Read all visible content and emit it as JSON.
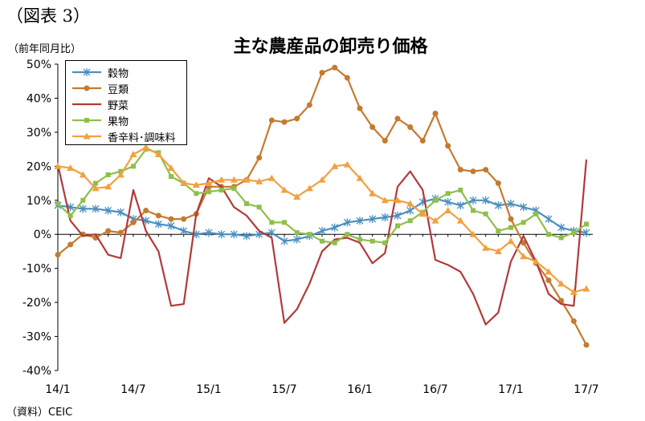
{
  "page": {
    "figure_label": "（図表 3）",
    "unit_label": "（前年同月比）",
    "title": "主な農産品の卸売り価格",
    "source": "（資料）CEIC"
  },
  "chart_data": {
    "type": "line",
    "title": "主な農産品の卸売り価格",
    "ylabel": "（前年同月比）",
    "xlabel": "",
    "ylim": [
      -40,
      50
    ],
    "yticks": [
      "50%",
      "40%",
      "30%",
      "20%",
      "10%",
      "0%",
      "-10%",
      "-20%",
      "-30%",
      "-40%"
    ],
    "ytick_values": [
      50,
      40,
      30,
      20,
      10,
      0,
      -10,
      -20,
      -30,
      -40
    ],
    "x": [
      "14/1",
      "14/2",
      "14/3",
      "14/4",
      "14/5",
      "14/6",
      "14/7",
      "14/8",
      "14/9",
      "14/10",
      "14/11",
      "14/12",
      "15/1",
      "15/2",
      "15/3",
      "15/4",
      "15/5",
      "15/6",
      "15/7",
      "15/8",
      "15/9",
      "15/10",
      "15/11",
      "15/12",
      "16/1",
      "16/2",
      "16/3",
      "16/4",
      "16/5",
      "16/6",
      "16/7",
      "16/8",
      "16/9",
      "16/10",
      "16/11",
      "16/12",
      "17/1",
      "17/2",
      "17/3",
      "17/4",
      "17/5",
      "17/6",
      "17/7"
    ],
    "xtick_labels": [
      "14/1",
      "14/7",
      "15/1",
      "15/7",
      "16/1",
      "16/7",
      "17/1",
      "17/7"
    ],
    "xtick_indices": [
      0,
      6,
      12,
      18,
      24,
      30,
      36,
      42
    ],
    "grid": false,
    "legend_position": "top-left",
    "series": [
      {
        "name": "穀物",
        "color": "#4a8fbf",
        "marker": "star",
        "values": [
          8.5,
          8,
          7.5,
          7.5,
          7,
          6.5,
          4.5,
          4,
          3,
          2.5,
          1,
          0,
          0.5,
          0,
          0,
          -0.5,
          0,
          0.5,
          -2,
          -1.5,
          -0.5,
          1,
          2,
          3.5,
          4,
          4.5,
          5,
          5.5,
          7,
          9.5,
          10.5,
          9.5,
          8.5,
          10,
          10,
          8.5,
          9,
          8,
          7,
          4.5,
          2,
          1,
          0.5
        ]
      },
      {
        "name": "豆類",
        "color": "#c57a2e",
        "marker": "circle",
        "values": [
          -6,
          -3,
          0,
          -1,
          1,
          0.5,
          3.5,
          7,
          5.5,
          4.5,
          4.5,
          6,
          14,
          14,
          14,
          16,
          22.5,
          33.5,
          33,
          34,
          38,
          47.5,
          49,
          46,
          37,
          31.5,
          27.5,
          34,
          31.5,
          27.5,
          35.5,
          26,
          19,
          18.5,
          19,
          15,
          4.5,
          -2.5,
          -8.5,
          -13.5,
          -19.5,
          -25.5,
          -32.5
        ]
      },
      {
        "name": "野菜",
        "color": "#b23a3a",
        "marker": "none",
        "values": [
          20.5,
          4,
          -0.5,
          0,
          -6,
          -7,
          13,
          1,
          -5,
          -21,
          -20.5,
          6,
          16.5,
          14,
          8,
          5.5,
          1,
          -1,
          -26,
          -22,
          -14.5,
          -5,
          -1.5,
          -1,
          -2.5,
          -8.5,
          -5.5,
          14,
          18.5,
          13,
          -7.5,
          -9,
          -11,
          -17.5,
          -26.5,
          -23,
          -8,
          -0.5,
          -8,
          -17.5,
          -20.5,
          -21,
          22
        ]
      },
      {
        "name": "果物",
        "color": "#8fbf4a",
        "marker": "square",
        "values": [
          9,
          5.5,
          10,
          15,
          17.5,
          18.5,
          20,
          25,
          24,
          17,
          15,
          12,
          12.5,
          13,
          13.5,
          9,
          8,
          3.5,
          3.5,
          0.5,
          0,
          -2,
          -2.5,
          0,
          -1.5,
          -2,
          -2.5,
          2.5,
          4,
          6.5,
          10,
          12,
          13,
          7,
          6,
          1,
          2,
          3.5,
          6,
          0,
          -1,
          0.5,
          3
        ]
      },
      {
        "name": "香辛料･調味料",
        "color": "#f2a040",
        "marker": "triangle",
        "values": [
          20,
          19.5,
          17.5,
          13.5,
          14,
          17.5,
          23.5,
          25.5,
          23.5,
          19.5,
          15,
          14.5,
          15,
          16,
          16,
          16,
          15.5,
          16.5,
          13,
          11,
          13.5,
          16,
          20,
          20.5,
          16.5,
          12,
          10,
          10,
          9,
          6,
          4,
          7,
          4,
          0,
          -4,
          -5,
          -2,
          -6.5,
          -8,
          -11,
          -14.5,
          -17,
          -16
        ]
      }
    ]
  }
}
